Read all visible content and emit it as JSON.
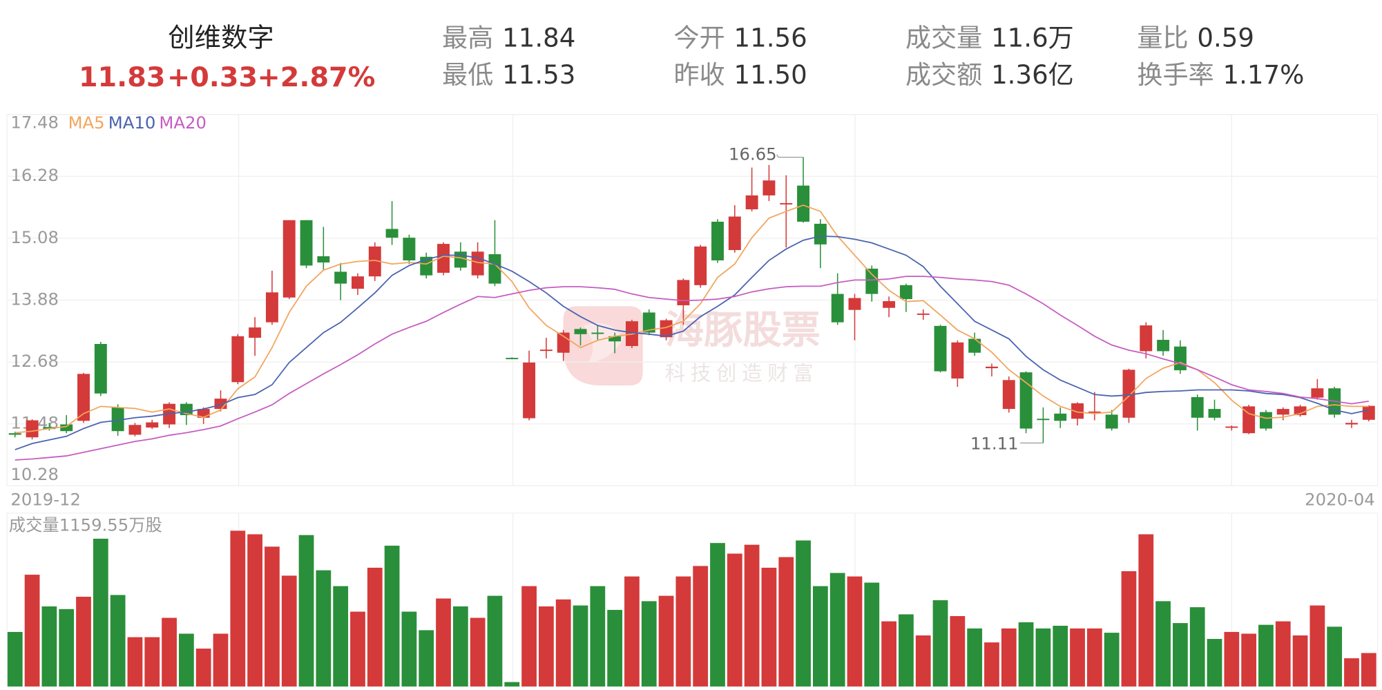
{
  "header": {
    "name": "创维数字",
    "price": "11.83",
    "change": "+0.33",
    "change_pct": "+2.87%",
    "stats": [
      {
        "label": "最高",
        "value": "11.84"
      },
      {
        "label": "最低",
        "value": "11.53"
      },
      {
        "label": "今开",
        "value": "11.56"
      },
      {
        "label": "昨收",
        "value": "11.50"
      },
      {
        "label": "成交量",
        "value": "11.6万"
      },
      {
        "label": "成交额",
        "value": "1.36亿"
      },
      {
        "label": "量比",
        "value": "0.59"
      },
      {
        "label": "换手率",
        "value": "1.17%"
      }
    ]
  },
  "watermark": {
    "title": "海豚股票",
    "slogan": "科技创造财富"
  },
  "chart_data": {
    "type": "candlestick",
    "period_labels": [
      "2019-12",
      "2020-04"
    ],
    "ylim": [
      10.28,
      17.48
    ],
    "yticks": [
      17.48,
      16.28,
      15.08,
      13.88,
      12.68,
      11.48,
      10.28
    ],
    "grid": true,
    "up_color": "#d43a3a",
    "down_color": "#2a8f3a",
    "high_label": "16.65",
    "low_label": "11.11",
    "open": [
      11.3,
      11.22,
      11.42,
      11.47,
      11.54,
      13.03,
      11.8,
      11.27,
      11.41,
      11.47,
      11.87,
      11.6,
      11.77,
      12.29,
      13.15,
      13.45,
      13.93,
      15.43,
      14.73,
      14.43,
      14.1,
      14.34,
      15.26,
      15.09,
      14.72,
      14.41,
      14.82,
      14.36,
      14.77,
      12.76,
      11.59,
      12.9,
      12.86,
      13.32,
      13.25,
      13.18,
      12.99,
      13.64,
      13.16,
      13.78,
      14.17,
      15.4,
      14.85,
      15.64,
      15.91,
      15.74,
      16.1,
      15.36,
      14.0,
      13.69,
      14.49,
      13.73,
      14.17,
      13.6,
      13.38,
      12.36,
      13.13,
      12.56,
      11.77,
      12.48,
      11.58,
      11.68,
      11.58,
      11.7,
      11.66,
      11.6,
      12.89,
      13.11,
      12.98,
      12.0,
      11.77,
      11.41,
      11.3,
      11.71,
      11.66,
      11.65,
      11.99,
      12.17,
      11.47,
      11.56
    ],
    "close": [
      11.27,
      11.55,
      11.38,
      11.34,
      12.45,
      12.07,
      11.34,
      11.46,
      11.51,
      11.87,
      11.65,
      11.77,
      11.97,
      13.18,
      13.35,
      14.03,
      15.43,
      14.55,
      14.61,
      14.2,
      14.34,
      14.92,
      15.09,
      14.65,
      14.36,
      14.97,
      14.51,
      14.82,
      14.2,
      12.75,
      12.67,
      12.92,
      13.25,
      13.22,
      13.24,
      13.08,
      13.47,
      13.25,
      13.49,
      14.27,
      14.92,
      14.65,
      15.5,
      15.91,
      16.2,
      15.76,
      15.4,
      14.96,
      13.45,
      13.92,
      14.0,
      13.86,
      13.9,
      13.62,
      12.5,
      13.06,
      12.86,
      12.59,
      12.33,
      11.39,
      11.56,
      11.54,
      11.88,
      11.72,
      11.39,
      12.53,
      13.39,
      12.89,
      12.52,
      11.6,
      11.6,
      11.43,
      11.82,
      11.39,
      11.77,
      11.82,
      12.17,
      11.66,
      11.5,
      11.83
    ],
    "high": [
      11.33,
      11.57,
      11.5,
      11.65,
      12.47,
      13.07,
      11.86,
      11.5,
      11.56,
      11.9,
      11.9,
      11.8,
      12.13,
      13.22,
      13.55,
      14.45,
      15.43,
      15.43,
      15.3,
      14.6,
      14.4,
      15.0,
      15.8,
      15.15,
      14.8,
      15.0,
      15.0,
      15.0,
      15.43,
      12.77,
      12.9,
      13.15,
      13.3,
      13.35,
      13.4,
      13.25,
      13.5,
      13.7,
      13.52,
      14.3,
      14.95,
      15.45,
      15.72,
      16.45,
      16.5,
      16.3,
      16.65,
      15.45,
      14.4,
      14.0,
      14.55,
      13.95,
      14.2,
      13.7,
      13.4,
      13.1,
      13.25,
      12.65,
      12.4,
      12.5,
      11.8,
      11.8,
      11.9,
      12.1,
      11.75,
      12.55,
      13.45,
      13.3,
      13.1,
      12.05,
      11.95,
      11.45,
      11.85,
      11.75,
      11.8,
      11.85,
      12.35,
      12.2,
      11.56,
      11.84
    ],
    "low": [
      11.22,
      11.18,
      11.35,
      11.3,
      11.5,
      12.02,
      11.25,
      11.24,
      11.38,
      11.4,
      11.46,
      11.48,
      11.72,
      12.25,
      12.8,
      13.4,
      13.9,
      14.5,
      14.45,
      13.88,
      13.98,
      14.25,
      14.95,
      14.58,
      14.3,
      14.36,
      14.45,
      14.3,
      14.15,
      12.74,
      11.55,
      12.75,
      12.7,
      13.0,
      13.1,
      12.85,
      12.95,
      13.2,
      13.1,
      13.4,
      14.12,
      14.6,
      14.8,
      15.6,
      15.8,
      14.9,
      15.38,
      14.5,
      13.4,
      13.1,
      13.85,
      13.55,
      13.65,
      13.5,
      12.48,
      12.2,
      12.8,
      12.4,
      11.7,
      11.3,
      11.11,
      11.4,
      11.45,
      11.55,
      11.35,
      11.5,
      12.75,
      12.8,
      12.45,
      11.35,
      11.55,
      11.35,
      11.28,
      11.35,
      11.55,
      11.62,
      11.95,
      11.6,
      11.4,
      11.53
    ],
    "ma": [
      {
        "name": "MA5",
        "color": "#f2a55e",
        "values": [
          11.31,
          11.34,
          11.39,
          11.43,
          11.68,
          11.82,
          11.8,
          11.78,
          11.71,
          11.77,
          11.68,
          11.61,
          11.75,
          12.16,
          12.39,
          12.96,
          13.64,
          14.15,
          14.46,
          14.58,
          14.63,
          14.65,
          14.58,
          14.61,
          14.58,
          14.73,
          14.7,
          14.61,
          14.58,
          14.24,
          13.73,
          13.39,
          13.18,
          12.96,
          13.1,
          13.18,
          13.22,
          13.3,
          13.35,
          13.47,
          13.81,
          14.32,
          14.58,
          15.09,
          15.47,
          15.6,
          15.72,
          15.6,
          15.12,
          14.75,
          14.38,
          14.07,
          13.85,
          13.87,
          13.59,
          13.3,
          13.13,
          12.87,
          12.53,
          12.28,
          12.02,
          11.82,
          11.71,
          11.68,
          11.71,
          12.02,
          12.36,
          12.56,
          12.67,
          12.53,
          12.28,
          11.94,
          11.68,
          11.59,
          11.61,
          11.68,
          11.82,
          11.85,
          11.82,
          11.82
        ]
      },
      {
        "name": "MA10",
        "color": "#4a63b0",
        "values": [
          10.98,
          11.1,
          11.17,
          11.24,
          11.39,
          11.51,
          11.55,
          11.6,
          11.63,
          11.68,
          11.71,
          11.77,
          11.85,
          11.99,
          12.05,
          12.24,
          12.67,
          12.96,
          13.25,
          13.45,
          13.73,
          14.02,
          14.36,
          14.55,
          14.67,
          14.75,
          14.75,
          14.7,
          14.58,
          14.44,
          14.24,
          14.02,
          13.76,
          13.56,
          13.39,
          13.3,
          13.25,
          13.22,
          13.18,
          13.28,
          13.56,
          13.76,
          13.98,
          14.32,
          14.65,
          14.87,
          15.04,
          15.12,
          15.11,
          15.06,
          14.99,
          14.87,
          14.75,
          14.53,
          14.15,
          13.81,
          13.47,
          13.3,
          13.13,
          12.79,
          12.53,
          12.33,
          12.19,
          12.05,
          12.02,
          12.04,
          12.09,
          12.11,
          12.12,
          12.14,
          12.14,
          12.14,
          12.12,
          12.07,
          12.05,
          11.99,
          11.88,
          11.75,
          11.68,
          11.75
        ]
      },
      {
        "name": "MA20",
        "color": "#c65cc2",
        "values": [
          10.78,
          10.8,
          10.83,
          10.86,
          10.93,
          11.0,
          11.07,
          11.14,
          11.19,
          11.26,
          11.31,
          11.37,
          11.44,
          11.58,
          11.71,
          11.85,
          12.07,
          12.26,
          12.45,
          12.63,
          12.82,
          13.03,
          13.22,
          13.35,
          13.47,
          13.64,
          13.8,
          13.95,
          13.93,
          14.0,
          14.07,
          14.12,
          14.14,
          14.14,
          14.12,
          14.09,
          14.0,
          13.93,
          13.9,
          13.87,
          13.88,
          13.9,
          13.95,
          14.04,
          14.1,
          14.14,
          14.15,
          14.15,
          14.22,
          14.27,
          14.27,
          14.29,
          14.34,
          14.34,
          14.32,
          14.29,
          14.27,
          14.24,
          14.17,
          14.0,
          13.81,
          13.59,
          13.39,
          13.18,
          13.01,
          12.91,
          12.84,
          12.74,
          12.65,
          12.53,
          12.39,
          12.24,
          12.14,
          12.11,
          12.07,
          12.0,
          11.97,
          11.92,
          11.87,
          11.92
        ]
      }
    ],
    "volume_label": "成交量1159.55万股",
    "volume_ylim": [
      0,
      1159.55
    ],
    "volume": [
      406,
      832,
      596,
      576,
      668,
      1100,
      681,
      367,
      367,
      511,
      393,
      282,
      393,
      1159.55,
      1133,
      1041,
      825,
      1127,
      865,
      747,
      557,
      884,
      1048,
      557,
      419,
      655,
      596,
      511,
      675,
      33,
      747,
      596,
      648,
      603,
      747,
      570,
      819,
      635,
      675,
      819,
      897,
      1068,
      989,
      1055,
      884,
      963,
      1087,
      747,
      845,
      819,
      773,
      485,
      537,
      380,
      642,
      524,
      432,
      328,
      432,
      478,
      432,
      452,
      432,
      432,
      400,
      858,
      1133,
      635,
      472,
      590,
      354,
      406,
      393,
      459,
      485,
      380,
      603,
      445,
      210,
      249
    ]
  }
}
